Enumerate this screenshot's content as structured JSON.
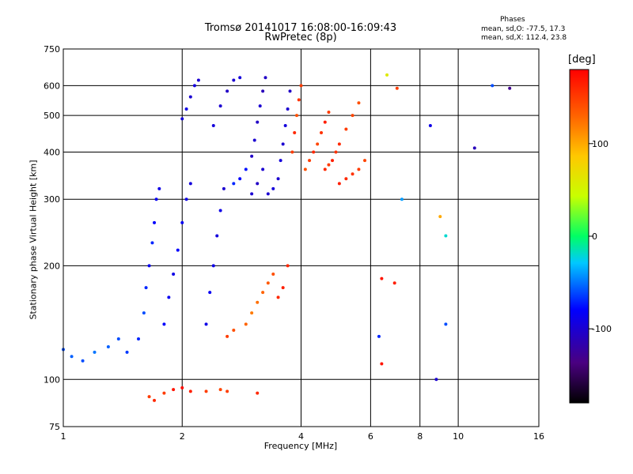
{
  "title_line1": "Tromsø 20141017 16:08:00-16:09:43",
  "title_line2": "RwPretec (8p)",
  "phase_header": "Phases",
  "phase_o": "mean, sd,O: -77.5, 17.3",
  "phase_x": "mean, sd,X: 112.4, 23.8",
  "xlabel": "Frequency [MHz]",
  "ylabel": "Stationary phase Virtual Height [km]",
  "colorbar_unit": "[deg]",
  "colorbar": {
    "range": [
      -180,
      180
    ],
    "ticks": [
      "100",
      "0",
      "-100"
    ],
    "tick_values": [
      100,
      0,
      -100
    ]
  },
  "chart_data": {
    "type": "scatter",
    "x_scale": "log",
    "y_scale": "log",
    "xlim": [
      1,
      16
    ],
    "ylim": [
      75,
      750
    ],
    "x_ticks": [
      "1",
      "2",
      "4",
      "6",
      "8",
      "10",
      "16"
    ],
    "x_tick_values": [
      1,
      2,
      4,
      6,
      8,
      10,
      16
    ],
    "y_ticks": [
      "75",
      "100",
      "200",
      "300",
      "400",
      "500",
      "600",
      "750"
    ],
    "y_tick_values": [
      75,
      100,
      200,
      300,
      400,
      500,
      600,
      750
    ],
    "grid": true,
    "points": [
      [
        1.0,
        120,
        -60
      ],
      [
        1.05,
        115,
        -55
      ],
      [
        1.12,
        112,
        -60
      ],
      [
        1.2,
        118,
        -50
      ],
      [
        1.3,
        122,
        -55
      ],
      [
        1.38,
        128,
        -60
      ],
      [
        1.45,
        118,
        -65
      ],
      [
        1.55,
        128,
        -70
      ],
      [
        1.6,
        150,
        -60
      ],
      [
        1.62,
        175,
        -70
      ],
      [
        1.65,
        200,
        -85
      ],
      [
        1.68,
        230,
        -70
      ],
      [
        1.7,
        260,
        -80
      ],
      [
        1.72,
        300,
        -85
      ],
      [
        1.75,
        320,
        -90
      ],
      [
        1.8,
        140,
        -80
      ],
      [
        1.85,
        165,
        -85
      ],
      [
        1.9,
        190,
        -90
      ],
      [
        1.95,
        220,
        -80
      ],
      [
        2.0,
        260,
        -85
      ],
      [
        2.05,
        300,
        -90
      ],
      [
        2.1,
        330,
        -95
      ],
      [
        2.0,
        490,
        -95
      ],
      [
        2.05,
        520,
        -90
      ],
      [
        2.1,
        560,
        -100
      ],
      [
        2.15,
        600,
        -95
      ],
      [
        2.2,
        620,
        -100
      ],
      [
        2.3,
        140,
        -90
      ],
      [
        2.35,
        170,
        -85
      ],
      [
        2.4,
        200,
        -90
      ],
      [
        2.45,
        240,
        -95
      ],
      [
        2.5,
        280,
        -90
      ],
      [
        2.55,
        320,
        -100
      ],
      [
        2.4,
        470,
        -95
      ],
      [
        2.5,
        530,
        -100
      ],
      [
        2.6,
        580,
        -105
      ],
      [
        2.7,
        620,
        -100
      ],
      [
        2.8,
        630,
        -95
      ],
      [
        2.7,
        330,
        -70
      ],
      [
        2.8,
        340,
        -80
      ],
      [
        2.9,
        360,
        -75
      ],
      [
        3.0,
        310,
        -100
      ],
      [
        3.1,
        330,
        -105
      ],
      [
        3.2,
        360,
        -100
      ],
      [
        3.0,
        390,
        -105
      ],
      [
        3.05,
        430,
        -100
      ],
      [
        3.1,
        480,
        -105
      ],
      [
        3.15,
        530,
        -100
      ],
      [
        3.2,
        580,
        -110
      ],
      [
        3.25,
        630,
        -105
      ],
      [
        3.3,
        310,
        -100
      ],
      [
        3.4,
        320,
        -95
      ],
      [
        3.5,
        340,
        -100
      ],
      [
        3.55,
        380,
        -95
      ],
      [
        3.6,
        420,
        -100
      ],
      [
        3.65,
        470,
        -95
      ],
      [
        3.7,
        520,
        -100
      ],
      [
        3.75,
        580,
        -105
      ],
      [
        3.8,
        400,
        150
      ],
      [
        3.85,
        450,
        160
      ],
      [
        3.9,
        500,
        140
      ],
      [
        3.95,
        550,
        155
      ],
      [
        4.0,
        600,
        150
      ],
      [
        4.1,
        360,
        140
      ],
      [
        4.2,
        380,
        150
      ],
      [
        4.3,
        400,
        160
      ],
      [
        4.4,
        420,
        145
      ],
      [
        4.5,
        450,
        155
      ],
      [
        4.6,
        480,
        165
      ],
      [
        4.7,
        510,
        150
      ],
      [
        4.6,
        360,
        160
      ],
      [
        4.7,
        370,
        150
      ],
      [
        4.8,
        380,
        165
      ],
      [
        4.9,
        400,
        155
      ],
      [
        5.0,
        420,
        160
      ],
      [
        5.2,
        460,
        150
      ],
      [
        5.4,
        500,
        145
      ],
      [
        5.6,
        540,
        140
      ],
      [
        5.0,
        330,
        165
      ],
      [
        5.2,
        340,
        160
      ],
      [
        5.4,
        350,
        155
      ],
      [
        5.6,
        360,
        150
      ],
      [
        5.8,
        380,
        145
      ],
      [
        2.9,
        140,
        130
      ],
      [
        3.0,
        150,
        120
      ],
      [
        3.1,
        160,
        125
      ],
      [
        3.2,
        170,
        130
      ],
      [
        3.3,
        180,
        135
      ],
      [
        3.4,
        190,
        140
      ],
      [
        3.5,
        165,
        160
      ],
      [
        3.6,
        175,
        165
      ],
      [
        3.7,
        200,
        160
      ],
      [
        2.6,
        130,
        150
      ],
      [
        2.7,
        135,
        140
      ],
      [
        1.65,
        90,
        150
      ],
      [
        1.7,
        88,
        160
      ],
      [
        1.8,
        92,
        150
      ],
      [
        1.9,
        94,
        170
      ],
      [
        2.0,
        95,
        175
      ],
      [
        2.1,
        93,
        165
      ],
      [
        2.3,
        93,
        150
      ],
      [
        2.5,
        94,
        145
      ],
      [
        2.6,
        93,
        150
      ],
      [
        3.1,
        92,
        160
      ],
      [
        6.4,
        185,
        170
      ],
      [
        6.9,
        180,
        165
      ],
      [
        6.4,
        110,
        170
      ],
      [
        6.3,
        130,
        -70
      ],
      [
        7.2,
        300,
        -40
      ],
      [
        8.5,
        470,
        -90
      ],
      [
        9.0,
        270,
        100
      ],
      [
        9.3,
        240,
        -20
      ],
      [
        9.3,
        140,
        -60
      ],
      [
        8.8,
        100,
        -100
      ],
      [
        11.0,
        410,
        -110
      ],
      [
        12.2,
        600,
        -60
      ],
      [
        13.5,
        590,
        -130
      ],
      [
        6.6,
        640,
        60
      ],
      [
        7.0,
        590,
        150
      ]
    ]
  }
}
